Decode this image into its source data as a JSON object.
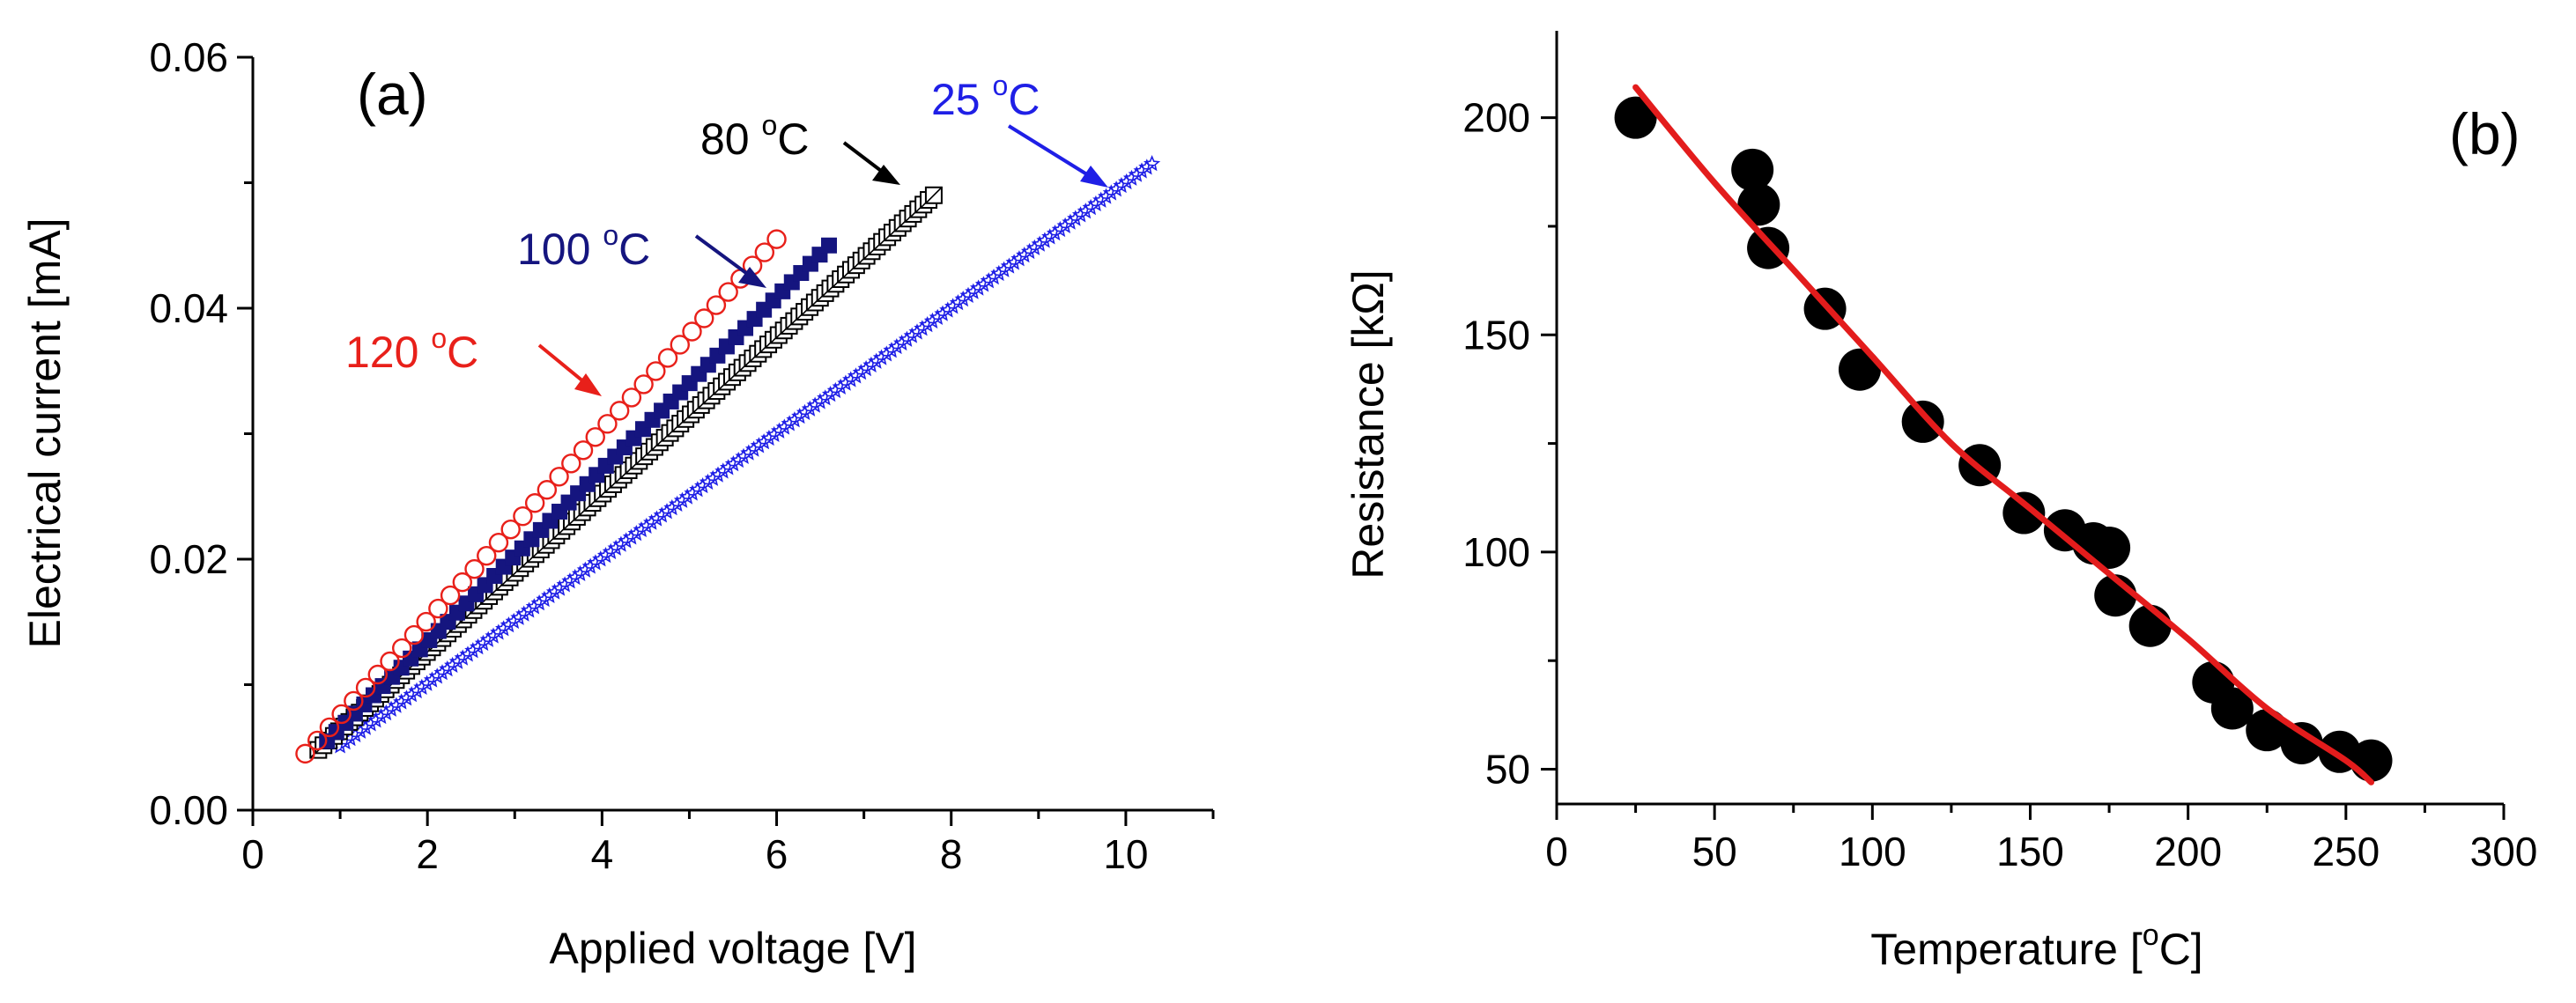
{
  "chart_data": [
    {
      "panel": "(a)",
      "type": "scatter",
      "xlabel": "Applied voltage [V]",
      "ylabel": "Electrical current [mA]",
      "xlim": [
        0,
        11
      ],
      "ylim": [
        0,
        0.06
      ],
      "xticks": [
        "0",
        "2",
        "4",
        "6",
        "8",
        "10"
      ],
      "yticks": [
        "0.00",
        "0.02",
        "0.04",
        "0.06"
      ],
      "series": [
        {
          "name": "25 °C",
          "label": "25 ",
          "unit": "C",
          "degree": "o",
          "color": "#1f1fe6",
          "marker": "star",
          "x_start": 1.0,
          "x_end": 10.3,
          "y_start": 0.0051,
          "y_end": 0.0515,
          "points": 160
        },
        {
          "name": "80 °C",
          "label": "80 ",
          "unit": "C",
          "degree": "o",
          "color": "#000000",
          "marker": "crossed-square",
          "x_start": 0.75,
          "x_end": 7.8,
          "y_start": 0.0048,
          "y_end": 0.049,
          "points": 120
        },
        {
          "name": "100 °C",
          "label": "100 ",
          "unit": "C",
          "degree": "o",
          "color": "#15157f",
          "marker": "filled-square",
          "x_start": 0.85,
          "x_end": 6.6,
          "y_start": 0.0055,
          "y_end": 0.045,
          "points": 55
        },
        {
          "name": "120 °C",
          "label": "120 ",
          "unit": "C",
          "degree": "o",
          "color": "#e8201a",
          "marker": "open-circle",
          "x_start": 0.6,
          "x_end": 6.0,
          "y_start": 0.0045,
          "y_end": 0.0455,
          "points": 40
        }
      ]
    },
    {
      "panel": "(b)",
      "type": "scatter",
      "xlabel_prefix": "Temperature [",
      "xlabel_degree": "o",
      "xlabel_suffix": "C]",
      "ylabel": "Resistance [kΩ]",
      "xlim": [
        0,
        300
      ],
      "ylim": [
        42,
        220
      ],
      "xticks": [
        "0",
        "50",
        "100",
        "150",
        "200",
        "250",
        "300"
      ],
      "yticks": [
        "50",
        "100",
        "150",
        "200"
      ],
      "points": {
        "x": [
          25,
          62,
          64,
          67,
          85,
          96,
          116,
          134,
          148,
          161,
          170,
          175,
          177,
          188,
          208,
          214,
          225,
          236,
          248,
          258
        ],
        "y": [
          200,
          188,
          180,
          170,
          156,
          142,
          130,
          120,
          109,
          105,
          102,
          101,
          90,
          83,
          70,
          64,
          59,
          56,
          54,
          52
        ]
      },
      "fit": {
        "color": "#e31c1c",
        "x": [
          25,
          50,
          75,
          100,
          125,
          150,
          175,
          200,
          225,
          250,
          258
        ],
        "y": [
          207,
          185,
          165,
          145,
          125,
          110,
          95,
          80,
          64,
          52,
          47
        ]
      }
    }
  ]
}
